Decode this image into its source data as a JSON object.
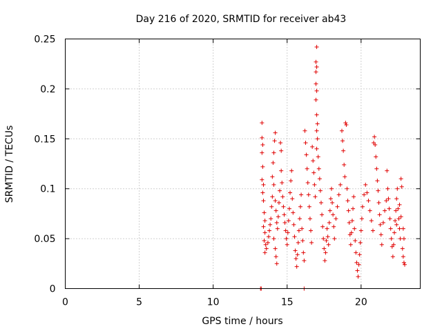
{
  "chart_data": {
    "type": "scatter",
    "title": "Day 216 of 2020, SRMTID for receiver ab43",
    "xlabel": "GPS time / hours",
    "ylabel": "SRMTID / TECUs",
    "xlim": [
      0,
      24
    ],
    "ylim": [
      0,
      0.25
    ],
    "x_ticks": [
      0,
      5,
      10,
      15,
      20
    ],
    "y_ticks": [
      0,
      0.05,
      0.1,
      0.15,
      0.2,
      0.25
    ],
    "x_tick_labels": [
      "0",
      "5",
      "10",
      "15",
      "20"
    ],
    "y_tick_labels": [
      "0",
      "0.05",
      "0.1",
      "0.15",
      "0.2",
      "0.25"
    ],
    "grid": true,
    "marker": "+",
    "color": "#e00000",
    "series": [
      {
        "name": "SRMTID",
        "points": [
          [
            13.2,
            0.0
          ],
          [
            13.25,
            0.0
          ],
          [
            16.15,
            0.0
          ],
          [
            13.3,
            0.166
          ],
          [
            13.3,
            0.151
          ],
          [
            13.35,
            0.144
          ],
          [
            13.3,
            0.136
          ],
          [
            13.35,
            0.122
          ],
          [
            13.3,
            0.109
          ],
          [
            13.4,
            0.104
          ],
          [
            13.35,
            0.096
          ],
          [
            13.4,
            0.088
          ],
          [
            13.45,
            0.076
          ],
          [
            13.5,
            0.068
          ],
          [
            13.4,
            0.062
          ],
          [
            13.5,
            0.056
          ],
          [
            13.45,
            0.048
          ],
          [
            13.55,
            0.044
          ],
          [
            13.6,
            0.04
          ],
          [
            13.5,
            0.036
          ],
          [
            13.7,
            0.046
          ],
          [
            13.75,
            0.052
          ],
          [
            13.8,
            0.058
          ],
          [
            13.85,
            0.064
          ],
          [
            13.9,
            0.07
          ],
          [
            13.95,
            0.082
          ],
          [
            14.0,
            0.092
          ],
          [
            14.0,
            0.112
          ],
          [
            14.05,
            0.126
          ],
          [
            14.1,
            0.136
          ],
          [
            14.15,
            0.148
          ],
          [
            14.2,
            0.156
          ],
          [
            14.1,
            0.104
          ],
          [
            14.2,
            0.088
          ],
          [
            14.25,
            0.078
          ],
          [
            14.3,
            0.066
          ],
          [
            14.1,
            0.05
          ],
          [
            14.2,
            0.04
          ],
          [
            14.25,
            0.032
          ],
          [
            14.3,
            0.025
          ],
          [
            14.35,
            0.06
          ],
          [
            14.4,
            0.072
          ],
          [
            14.45,
            0.086
          ],
          [
            14.5,
            0.098
          ],
          [
            14.55,
            0.146
          ],
          [
            14.6,
            0.138
          ],
          [
            14.6,
            0.118
          ],
          [
            14.65,
            0.106
          ],
          [
            14.7,
            0.092
          ],
          [
            14.75,
            0.082
          ],
          [
            14.8,
            0.074
          ],
          [
            14.85,
            0.066
          ],
          [
            14.9,
            0.058
          ],
          [
            14.95,
            0.05
          ],
          [
            15.0,
            0.044
          ],
          [
            15.05,
            0.056
          ],
          [
            15.1,
            0.068
          ],
          [
            15.15,
            0.08
          ],
          [
            15.2,
            0.096
          ],
          [
            15.25,
            0.108
          ],
          [
            15.3,
            0.118
          ],
          [
            15.35,
            0.09
          ],
          [
            15.4,
            0.076
          ],
          [
            15.45,
            0.064
          ],
          [
            15.5,
            0.052
          ],
          [
            15.55,
            0.038
          ],
          [
            15.6,
            0.03
          ],
          [
            15.65,
            0.022
          ],
          [
            15.7,
            0.034
          ],
          [
            15.75,
            0.046
          ],
          [
            15.8,
            0.058
          ],
          [
            15.85,
            0.07
          ],
          [
            15.9,
            0.082
          ],
          [
            15.95,
            0.094
          ],
          [
            16.0,
            0.06
          ],
          [
            16.05,
            0.048
          ],
          [
            16.1,
            0.036
          ],
          [
            16.15,
            0.028
          ],
          [
            16.2,
            0.158
          ],
          [
            16.25,
            0.146
          ],
          [
            16.3,
            0.134
          ],
          [
            16.35,
            0.12
          ],
          [
            16.4,
            0.106
          ],
          [
            16.45,
            0.094
          ],
          [
            16.5,
            0.082
          ],
          [
            16.55,
            0.07
          ],
          [
            16.6,
            0.058
          ],
          [
            16.65,
            0.046
          ],
          [
            16.7,
            0.142
          ],
          [
            16.75,
            0.128
          ],
          [
            16.8,
            0.116
          ],
          [
            16.85,
            0.104
          ],
          [
            16.9,
            0.092
          ],
          [
            17.0,
            0.242
          ],
          [
            16.95,
            0.227
          ],
          [
            17.0,
            0.222
          ],
          [
            16.95,
            0.217
          ],
          [
            16.95,
            0.205
          ],
          [
            17.0,
            0.198
          ],
          [
            16.95,
            0.189
          ],
          [
            17.0,
            0.174
          ],
          [
            17.05,
            0.165
          ],
          [
            17.0,
            0.158
          ],
          [
            17.05,
            0.15
          ],
          [
            17.0,
            0.14
          ],
          [
            17.1,
            0.132
          ],
          [
            17.15,
            0.12
          ],
          [
            17.2,
            0.11
          ],
          [
            17.25,
            0.098
          ],
          [
            17.3,
            0.086
          ],
          [
            17.35,
            0.074
          ],
          [
            17.4,
            0.062
          ],
          [
            17.45,
            0.05
          ],
          [
            17.5,
            0.04
          ],
          [
            17.55,
            0.028
          ],
          [
            17.6,
            0.036
          ],
          [
            17.65,
            0.048
          ],
          [
            17.7,
            0.06
          ],
          [
            17.75,
            0.052
          ],
          [
            17.8,
            0.044
          ],
          [
            17.85,
            0.066
          ],
          [
            17.9,
            0.078
          ],
          [
            17.95,
            0.09
          ],
          [
            18.0,
            0.1
          ],
          [
            18.05,
            0.086
          ],
          [
            18.1,
            0.074
          ],
          [
            18.15,
            0.062
          ],
          [
            18.2,
            0.05
          ],
          [
            18.3,
            0.07
          ],
          [
            18.4,
            0.082
          ],
          [
            18.5,
            0.094
          ],
          [
            18.6,
            0.104
          ],
          [
            18.7,
            0.158
          ],
          [
            18.75,
            0.148
          ],
          [
            18.8,
            0.138
          ],
          [
            18.85,
            0.124
          ],
          [
            18.9,
            0.112
          ],
          [
            18.95,
            0.166
          ],
          [
            19.0,
            0.164
          ],
          [
            19.05,
            0.1
          ],
          [
            19.1,
            0.088
          ],
          [
            19.15,
            0.078
          ],
          [
            19.2,
            0.066
          ],
          [
            19.25,
            0.054
          ],
          [
            19.3,
            0.044
          ],
          [
            19.35,
            0.056
          ],
          [
            19.4,
            0.068
          ],
          [
            19.45,
            0.08
          ],
          [
            19.5,
            0.092
          ],
          [
            19.55,
            0.06
          ],
          [
            19.6,
            0.048
          ],
          [
            19.65,
            0.036
          ],
          [
            19.7,
            0.026
          ],
          [
            19.75,
            0.018
          ],
          [
            19.8,
            0.012
          ],
          [
            19.85,
            0.024
          ],
          [
            19.9,
            0.034
          ],
          [
            19.95,
            0.046
          ],
          [
            20.0,
            0.058
          ],
          [
            20.05,
            0.07
          ],
          [
            20.1,
            0.082
          ],
          [
            20.2,
            0.094
          ],
          [
            20.3,
            0.104
          ],
          [
            20.4,
            0.096
          ],
          [
            20.5,
            0.088
          ],
          [
            20.6,
            0.078
          ],
          [
            20.7,
            0.068
          ],
          [
            20.8,
            0.058
          ],
          [
            20.85,
            0.146
          ],
          [
            20.9,
            0.152
          ],
          [
            20.95,
            0.144
          ],
          [
            21.0,
            0.132
          ],
          [
            21.05,
            0.12
          ],
          [
            21.1,
            0.108
          ],
          [
            21.15,
            0.098
          ],
          [
            21.2,
            0.086
          ],
          [
            21.25,
            0.074
          ],
          [
            21.3,
            0.064
          ],
          [
            21.35,
            0.054
          ],
          [
            21.4,
            0.044
          ],
          [
            21.5,
            0.066
          ],
          [
            21.6,
            0.078
          ],
          [
            21.7,
            0.088
          ],
          [
            21.75,
            0.118
          ],
          [
            21.8,
            0.1
          ],
          [
            21.85,
            0.09
          ],
          [
            21.9,
            0.08
          ],
          [
            21.95,
            0.07
          ],
          [
            22.0,
            0.06
          ],
          [
            22.05,
            0.05
          ],
          [
            22.1,
            0.042
          ],
          [
            22.15,
            0.032
          ],
          [
            22.2,
            0.044
          ],
          [
            22.25,
            0.056
          ],
          [
            22.3,
            0.068
          ],
          [
            22.35,
            0.078
          ],
          [
            22.4,
            0.09
          ],
          [
            22.45,
            0.1
          ],
          [
            22.5,
            0.08
          ],
          [
            22.55,
            0.07
          ],
          [
            22.6,
            0.06
          ],
          [
            22.65,
            0.05
          ],
          [
            22.7,
            0.11
          ],
          [
            22.75,
            0.102
          ],
          [
            22.8,
            0.04
          ],
          [
            22.85,
            0.032
          ],
          [
            22.9,
            0.026
          ],
          [
            22.95,
            0.024
          ],
          [
            22.9,
            0.05
          ],
          [
            22.85,
            0.06
          ],
          [
            22.7,
            0.072
          ],
          [
            22.6,
            0.084
          ],
          [
            22.4,
            0.064
          ]
        ]
      }
    ]
  }
}
